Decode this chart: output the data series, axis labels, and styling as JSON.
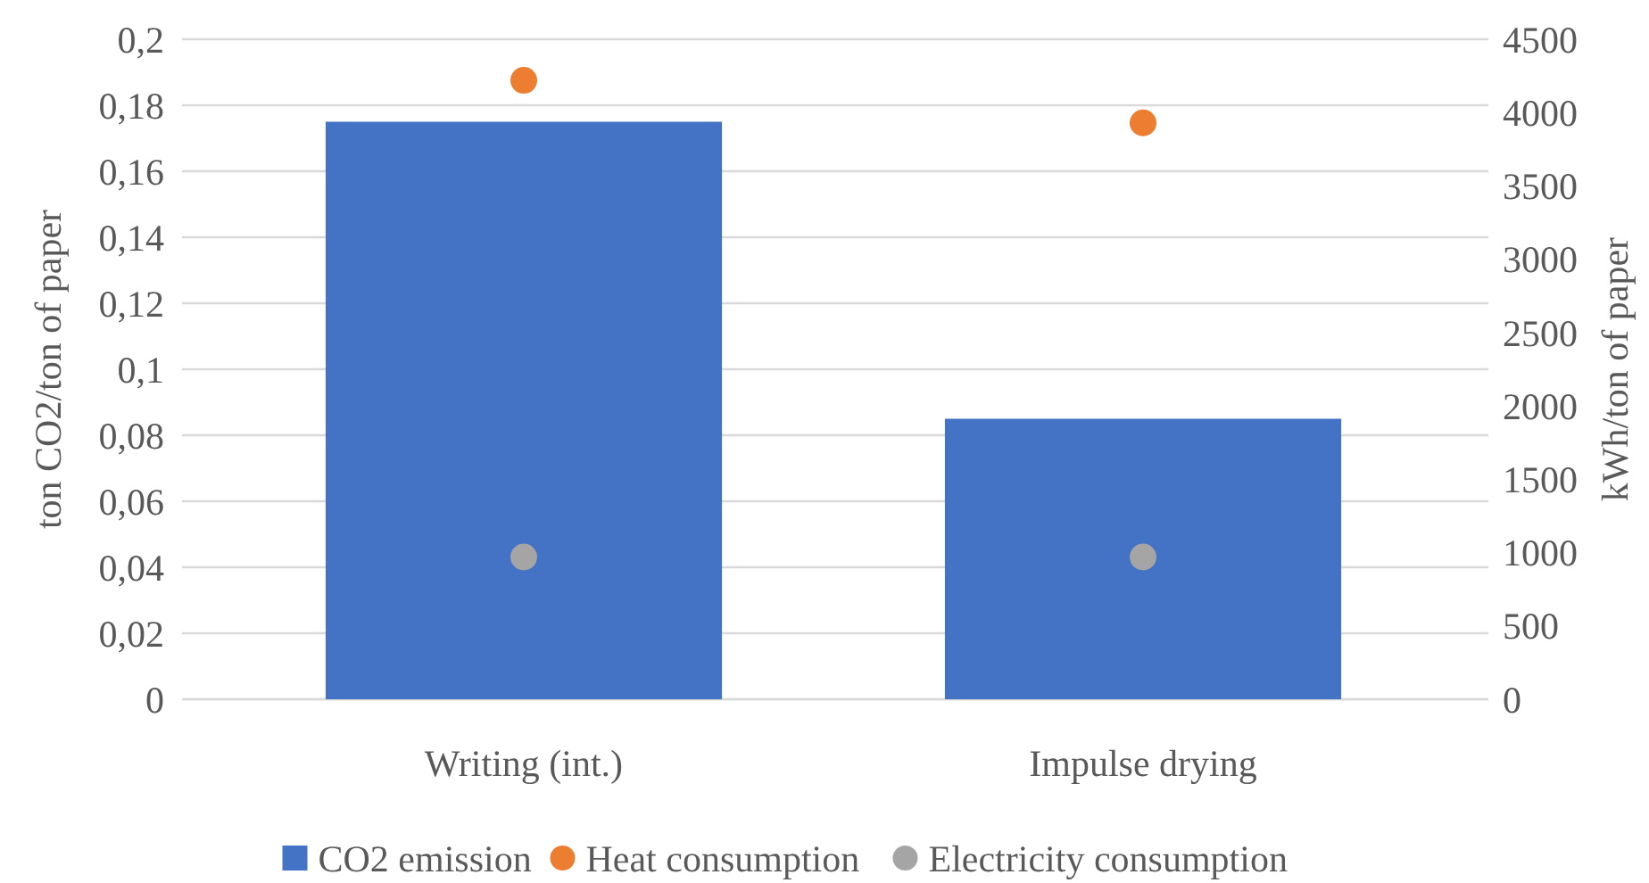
{
  "chart_data": {
    "type": "bar",
    "categories": [
      "Writing (int.)",
      "Impulse drying"
    ],
    "ylabel": "ton CO2/ton of paper",
    "y2label": "kWh/ton of paper",
    "series": [
      {
        "name": "CO2 emission",
        "color": "#4472c4",
        "values": [
          0.175,
          0.085
        ]
      },
      {
        "name": "Heat consumption",
        "type": "scatter",
        "axis": "y2",
        "color": "#ed7d31",
        "values": [
          4220,
          3930
        ]
      },
      {
        "name": "Electricity consumption",
        "type": "scatter",
        "axis": "y2",
        "color": "#a5a5a5",
        "values": [
          970,
          970
        ]
      }
    ],
    "ylim": [
      0,
      0.2
    ],
    "yticks": [
      {
        "value": 0,
        "label": "0"
      },
      {
        "value": 0.02,
        "label": "0,02"
      },
      {
        "value": 0.04,
        "label": "0,04"
      },
      {
        "value": 0.06,
        "label": "0,06"
      },
      {
        "value": 0.08,
        "label": "0,08"
      },
      {
        "value": 0.1,
        "label": "0,1"
      },
      {
        "value": 0.12,
        "label": "0,12"
      },
      {
        "value": 0.14,
        "label": "0,14"
      },
      {
        "value": 0.16,
        "label": "0,16"
      },
      {
        "value": 0.18,
        "label": "0,18"
      },
      {
        "value": 0.2,
        "label": "0,2"
      }
    ],
    "y2lim": [
      0,
      4500
    ],
    "y2ticks": [
      0,
      500,
      1000,
      1500,
      2000,
      2500,
      3000,
      3500,
      4000,
      4500
    ],
    "grid": "y",
    "legend": "bottom",
    "marker": "circle"
  }
}
